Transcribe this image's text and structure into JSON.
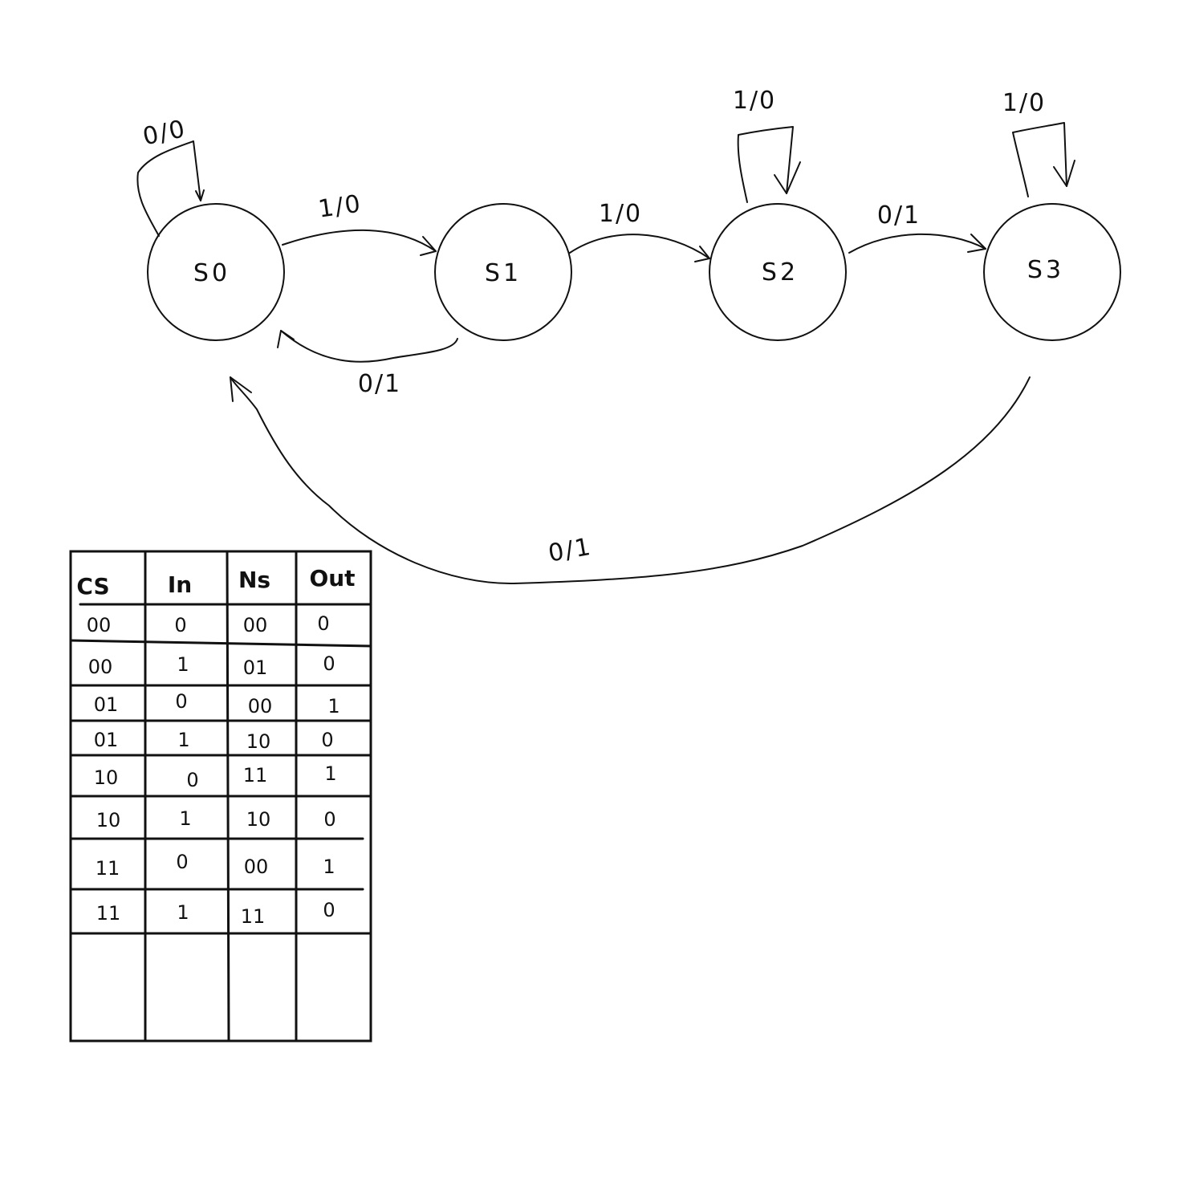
{
  "diagram": {
    "states": [
      {
        "id": "s0",
        "label": "S0"
      },
      {
        "id": "s1",
        "label": "S1"
      },
      {
        "id": "s2",
        "label": "S2"
      },
      {
        "id": "s3",
        "label": "S3"
      }
    ],
    "transitions": [
      {
        "id": "s0-self",
        "from": "S0",
        "to": "S0",
        "label": "0/0"
      },
      {
        "id": "s0-s1",
        "from": "S0",
        "to": "S1",
        "label": "1/0"
      },
      {
        "id": "s1-s0",
        "from": "S1",
        "to": "S0",
        "label": "0/1"
      },
      {
        "id": "s1-s2",
        "from": "S1",
        "to": "S2",
        "label": "1/0"
      },
      {
        "id": "s2-self",
        "from": "S2",
        "to": "S2",
        "label": "1/0"
      },
      {
        "id": "s2-s3",
        "from": "S2",
        "to": "S3",
        "label": "0/1"
      },
      {
        "id": "s3-self",
        "from": "S3",
        "to": "S3",
        "label": "1/0"
      },
      {
        "id": "s3-s0",
        "from": "S3",
        "to": "S0",
        "label": "0/1"
      }
    ]
  },
  "table": {
    "headers": [
      "CS",
      "In",
      "Ns",
      "Out"
    ],
    "rows": [
      [
        "00",
        "0",
        "00",
        "0"
      ],
      [
        "00",
        "1",
        "01",
        "0"
      ],
      [
        "01",
        "0",
        "00",
        "1"
      ],
      [
        "01",
        "1",
        "10",
        "0"
      ],
      [
        "10",
        "0",
        "11",
        "1"
      ],
      [
        "10",
        "1",
        "10",
        "0"
      ],
      [
        "11",
        "0",
        "00",
        "1"
      ],
      [
        "11",
        "1",
        "11",
        "0"
      ],
      [
        "",
        "",
        "",
        ""
      ]
    ]
  }
}
